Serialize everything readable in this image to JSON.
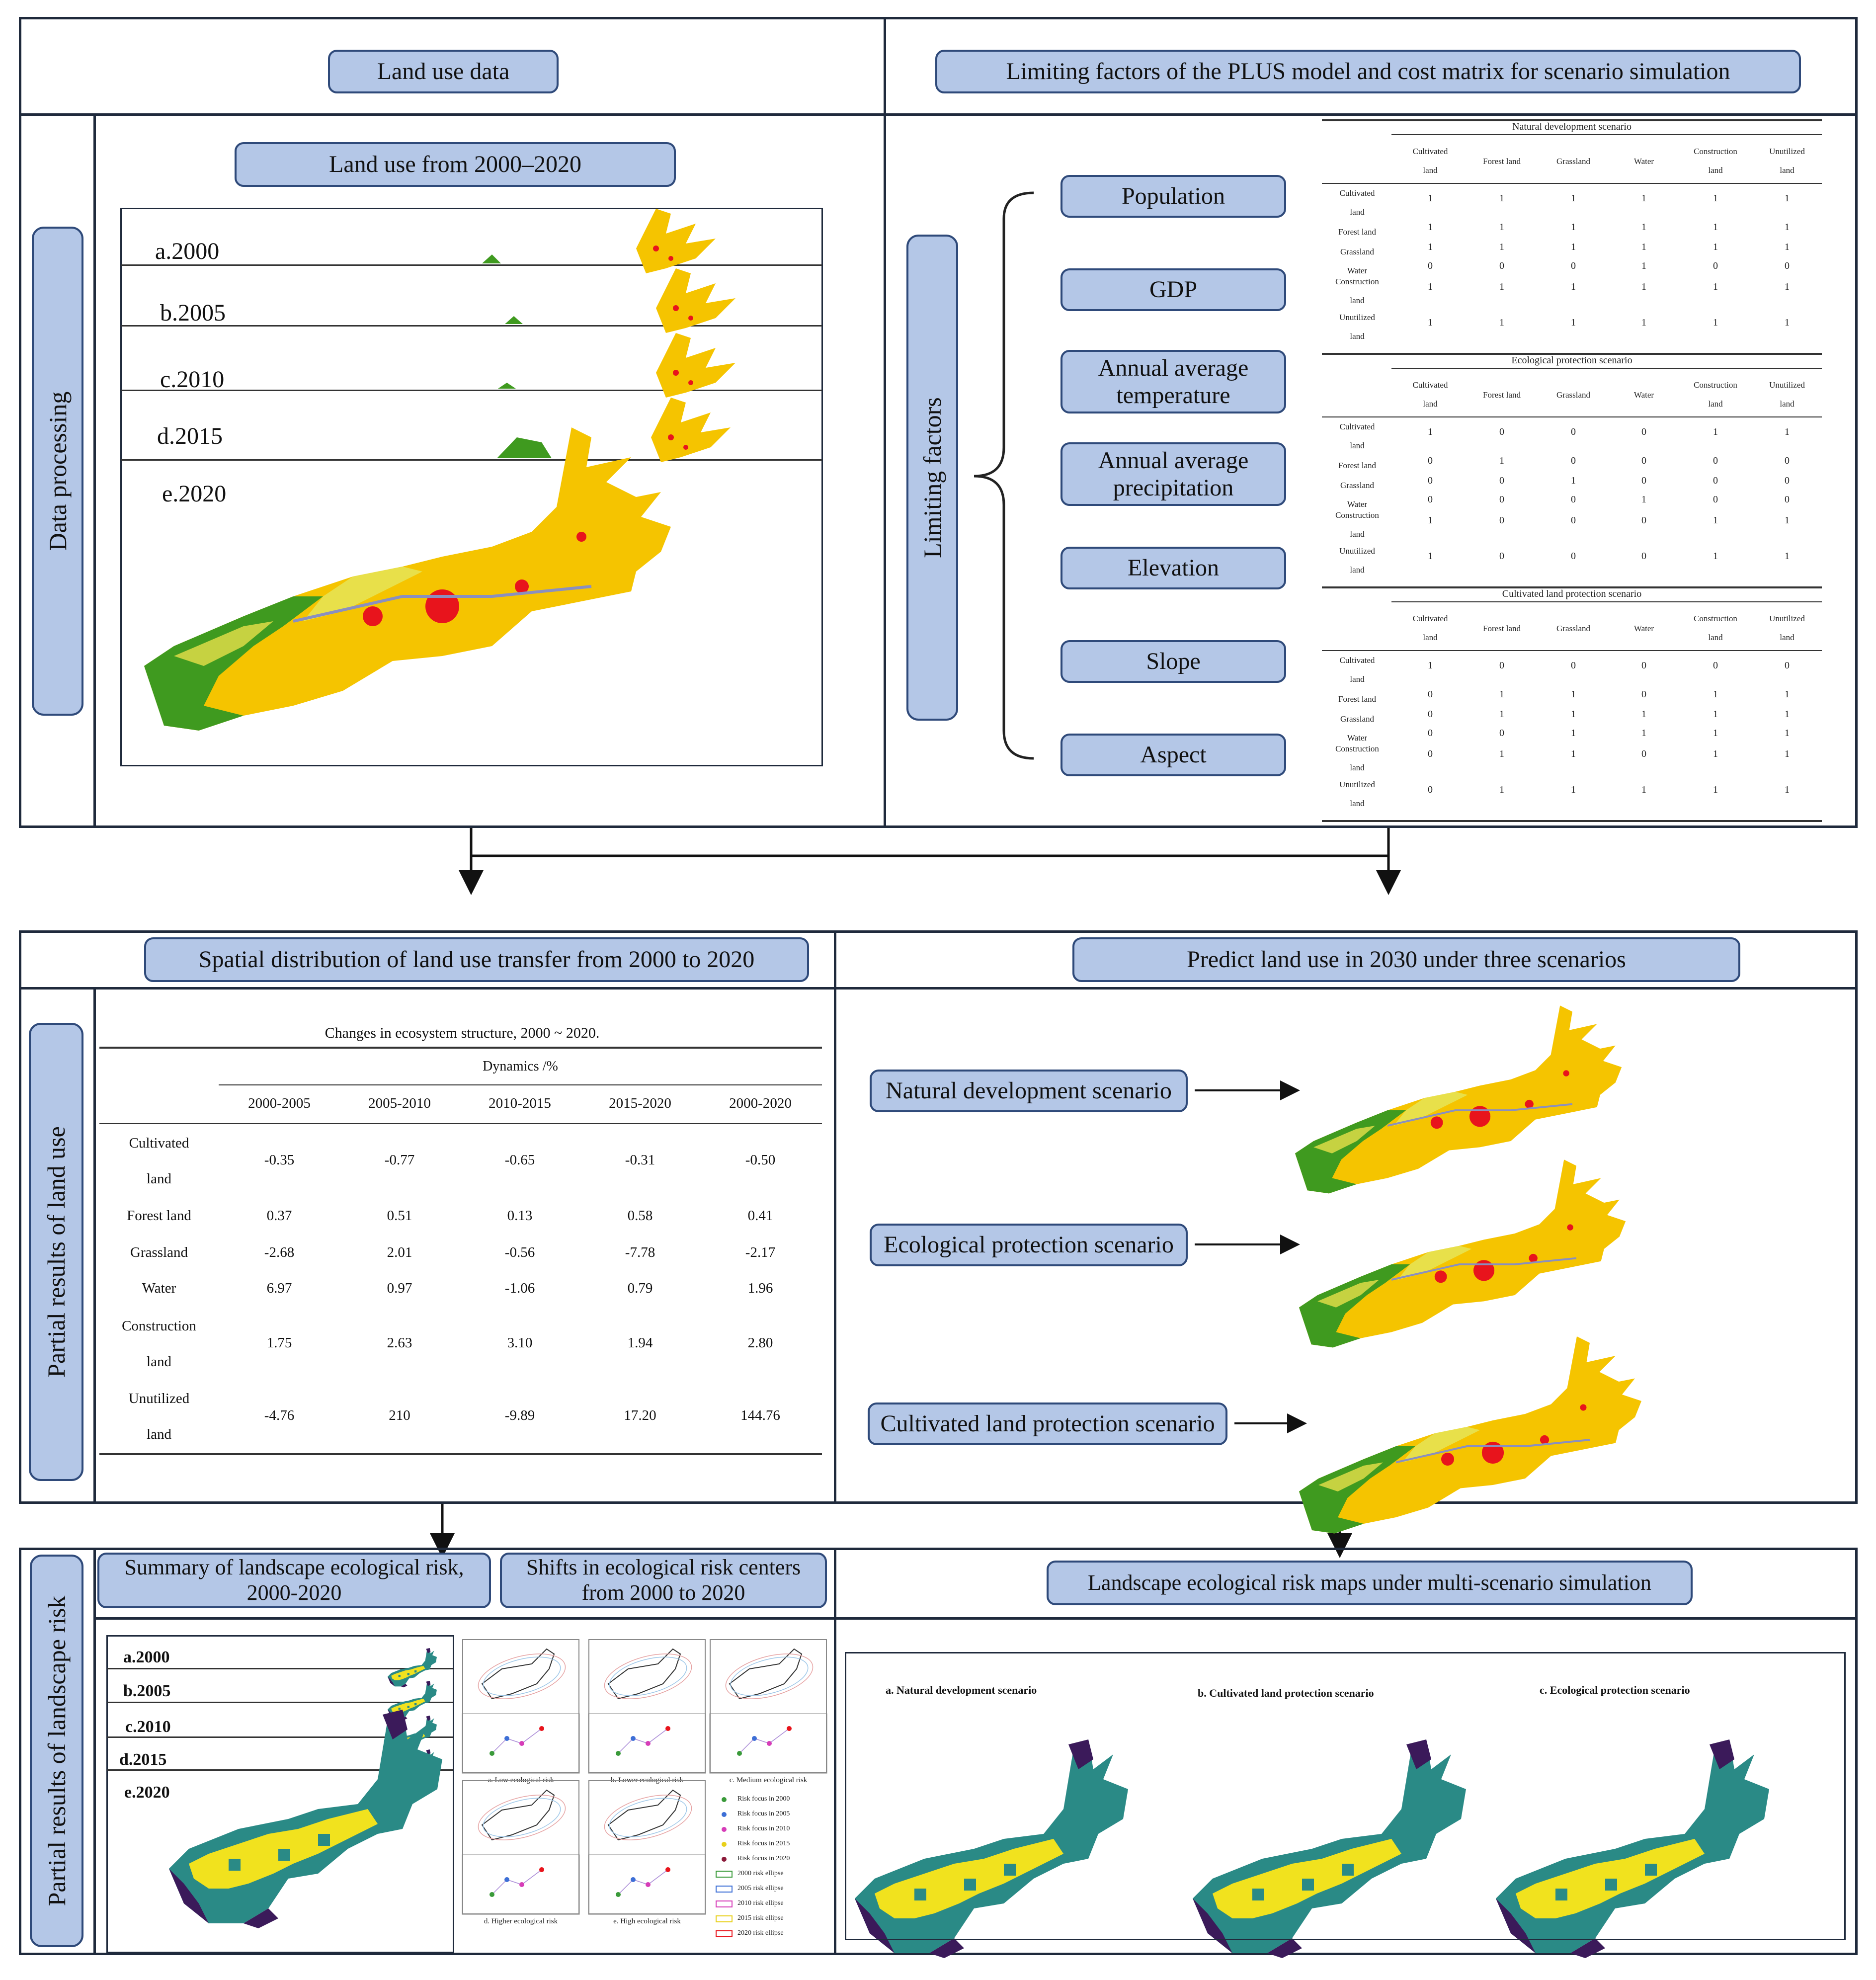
{
  "panels": {
    "land_use_data": "Land use data",
    "limiting_factors_title": "Limiting factors of the PLUS model and cost matrix for scenario simulation",
    "data_processing": "Data   processing",
    "land_use_from": "Land use from 2000–2020",
    "limiting_factors_label": "Limiting factors",
    "spatial_distribution": "Spatial distribution of land use transfer from 2000 to 2020",
    "predict": "Predict land use in 2030 under three scenarios",
    "partial_land_use": "Partial results of land use",
    "partial_landscape_risk": "Partial results of landscape risk",
    "summary_risk": "Summary of landscape ecological risk, 2000-2020",
    "shifts": "Shifts in ecological risk centers from 2000 to 2020",
    "risk_maps_title": "Landscape ecological risk maps under multi-scenario simulation"
  },
  "years": [
    "a.2000",
    "b.2005",
    "c.2010",
    "d.2015",
    "e.2020"
  ],
  "factors": [
    "Population",
    "GDP",
    "Annual average temperature",
    "Annual average precipitation",
    "Elevation",
    "Slope",
    "Aspect"
  ],
  "cost_matrix": {
    "columns": [
      "Cultivated land",
      "Forest land",
      "Grassland",
      "Water",
      "Construction land",
      "Unutilized land"
    ],
    "rows": [
      "Cultivated land",
      "Forest land",
      "Grassland",
      "Water",
      "Construction land",
      "Unutilized land"
    ],
    "scenarios": [
      {
        "name": "Natural development scenario",
        "values": [
          [
            "1",
            "1",
            "1",
            "1",
            "1",
            "1"
          ],
          [
            "1",
            "1",
            "1",
            "1",
            "1",
            "1"
          ],
          [
            "1",
            "1",
            "1",
            "1",
            "1",
            "1"
          ],
          [
            "0",
            "0",
            "0",
            "1",
            "0",
            "0"
          ],
          [
            "1",
            "1",
            "1",
            "1",
            "1",
            "1"
          ],
          [
            "1",
            "1",
            "1",
            "1",
            "1",
            "1"
          ]
        ]
      },
      {
        "name": "Ecological protection scenario",
        "values": [
          [
            "1",
            "0",
            "0",
            "0",
            "1",
            "1"
          ],
          [
            "0",
            "1",
            "0",
            "0",
            "0",
            "0"
          ],
          [
            "0",
            "0",
            "1",
            "0",
            "0",
            "0"
          ],
          [
            "0",
            "0",
            "0",
            "1",
            "0",
            "0"
          ],
          [
            "1",
            "0",
            "0",
            "0",
            "1",
            "1"
          ],
          [
            "1",
            "0",
            "0",
            "0",
            "1",
            "1"
          ]
        ]
      },
      {
        "name": "Cultivated land protection scenario",
        "values": [
          [
            "1",
            "0",
            "0",
            "0",
            "0",
            "0"
          ],
          [
            "0",
            "1",
            "1",
            "0",
            "1",
            "1"
          ],
          [
            "0",
            "1",
            "1",
            "1",
            "1",
            "1"
          ],
          [
            "0",
            "0",
            "1",
            "1",
            "1",
            "1"
          ],
          [
            "0",
            "1",
            "1",
            "0",
            "1",
            "1"
          ],
          [
            "0",
            "1",
            "1",
            "1",
            "1",
            "1"
          ]
        ]
      }
    ]
  },
  "dynamics_table": {
    "caption": "Changes in ecosystem structure, 2000 ~ 2020.",
    "group_header": "Dynamics /%",
    "columns": [
      "2000-2005",
      "2005-2010",
      "2010-2015",
      "2015-2020",
      "2000-2020"
    ],
    "rows": [
      {
        "label1": "Cultivated",
        "label2": "land",
        "values": [
          "-0.35",
          "-0.77",
          "-0.65",
          "-0.31",
          "-0.50"
        ]
      },
      {
        "label1": "Forest land",
        "label2": "",
        "values": [
          "0.37",
          "0.51",
          "0.13",
          "0.58",
          "0.41"
        ]
      },
      {
        "label1": "Grassland",
        "label2": "",
        "values": [
          "-2.68",
          "2.01",
          "-0.56",
          "-7.78",
          "-2.17"
        ]
      },
      {
        "label1": "Water",
        "label2": "",
        "values": [
          "6.97",
          "0.97",
          "-1.06",
          "0.79",
          "1.96"
        ]
      },
      {
        "label1": "Construction",
        "label2": "land",
        "values": [
          "1.75",
          "2.63",
          "3.10",
          "1.94",
          "2.80"
        ]
      },
      {
        "label1": "Unutilized",
        "label2": "land",
        "values": [
          "-4.76",
          "210",
          "-9.89",
          "17.20",
          "144.76"
        ]
      }
    ]
  },
  "scenarios": [
    "Natural development scenario",
    "Ecological protection scenario",
    "Cultivated land protection scenario"
  ],
  "risk_maps": [
    "a. Natural development scenario",
    "b. Cultivated land protection scenario",
    "c. Ecological protection scenario"
  ],
  "shift_panels": [
    "a. Low ecological risk",
    "b. Lower ecological risk",
    "c. Medium ecological risk",
    "d. Higher ecological risk",
    "e. High ecological risk"
  ],
  "shift_legend": [
    "Risk focus in 2000",
    "Risk focus in 2005",
    "Risk focus in 2010",
    "Risk focus in 2015",
    "Risk focus in 2020",
    "2000 risk ellipse",
    "2005 risk ellipse",
    "2010 risk ellipse",
    "2015 risk ellipse",
    "2020 risk ellipse"
  ],
  "colors": {
    "pill": "#b4c7e7",
    "cultivated": "#f5c400",
    "grass": "#e8e04a",
    "forest": "#3f9a1f",
    "urban": "#e8141c",
    "risk_low": "#3b1a5a",
    "risk_mid": "#2a8a86",
    "risk_high": "#f1e21e"
  }
}
